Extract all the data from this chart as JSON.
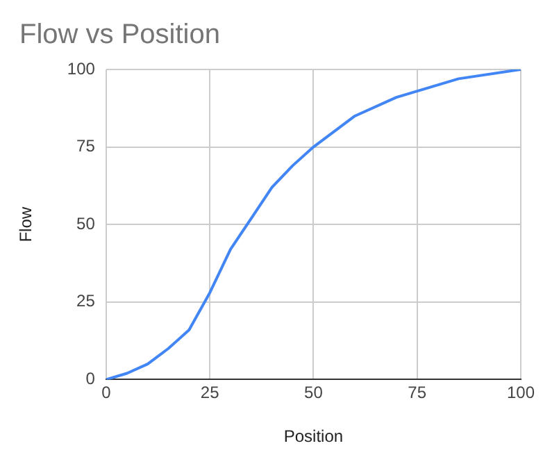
{
  "chart_data": {
    "type": "line",
    "title": "Flow vs Position",
    "xlabel": "Position",
    "ylabel": "Flow",
    "x": [
      0,
      5,
      10,
      15,
      20,
      25,
      30,
      35,
      40,
      45,
      50,
      60,
      70,
      85,
      100
    ],
    "series": [
      {
        "color": "#4285f4",
        "values": [
          0,
          2,
          5,
          10,
          16,
          28,
          42,
          52,
          62,
          69,
          75,
          85,
          91,
          97,
          100
        ]
      }
    ],
    "xlim": [
      0,
      100
    ],
    "xticks": [
      0,
      25,
      50,
      75,
      100
    ],
    "ylim": [
      0,
      100
    ],
    "yticks": [
      0,
      25,
      50,
      75,
      100
    ],
    "grid": true,
    "legend": false,
    "marker": "none",
    "line_style": "solid"
  }
}
